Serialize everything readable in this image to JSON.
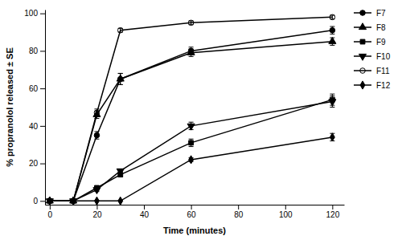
{
  "chart_data": {
    "type": "line",
    "x_label": "Time (minutes)",
    "y_label": "% propranolol released ± SE",
    "x": [
      0,
      10,
      20,
      30,
      60,
      120
    ],
    "series": [
      {
        "name": "F7",
        "color": "#000000",
        "marker": "circle",
        "values": [
          0,
          0,
          35,
          65,
          80,
          91
        ],
        "errors": [
          0,
          0,
          2,
          3,
          2,
          2
        ]
      },
      {
        "name": "F8",
        "color": "#000000",
        "marker": "triangle-up",
        "values": [
          0,
          0,
          46,
          65,
          79,
          85
        ],
        "errors": [
          0,
          0,
          2,
          3,
          2,
          2
        ]
      },
      {
        "name": "F9",
        "color": "#000000",
        "marker": "square",
        "values": [
          0,
          0,
          7,
          14,
          31,
          54
        ],
        "errors": [
          0,
          0,
          1,
          1,
          2,
          3
        ]
      },
      {
        "name": "F10",
        "color": "#000000",
        "marker": "triangle-down",
        "values": [
          0,
          0,
          6,
          16,
          40,
          53
        ],
        "errors": [
          0,
          0,
          1,
          1,
          2,
          3
        ]
      },
      {
        "name": "F11",
        "color": "#000000",
        "marker": "circle-open",
        "values": [
          0,
          0,
          47,
          91,
          95,
          98
        ],
        "errors": [
          0,
          0,
          2,
          1,
          1,
          1
        ]
      },
      {
        "name": "F12",
        "color": "#000000",
        "marker": "diamond",
        "values": [
          0,
          0,
          0,
          0,
          22,
          34
        ],
        "errors": [
          0,
          0,
          0,
          0,
          1,
          2
        ]
      }
    ],
    "xlim": [
      -2,
      125
    ],
    "ylim": [
      -2,
      102
    ],
    "xticks": [
      0,
      20,
      40,
      60,
      80,
      100,
      120
    ],
    "yticks": [
      0,
      20,
      40,
      60,
      80,
      100
    ],
    "grid": false,
    "legend": "right"
  }
}
